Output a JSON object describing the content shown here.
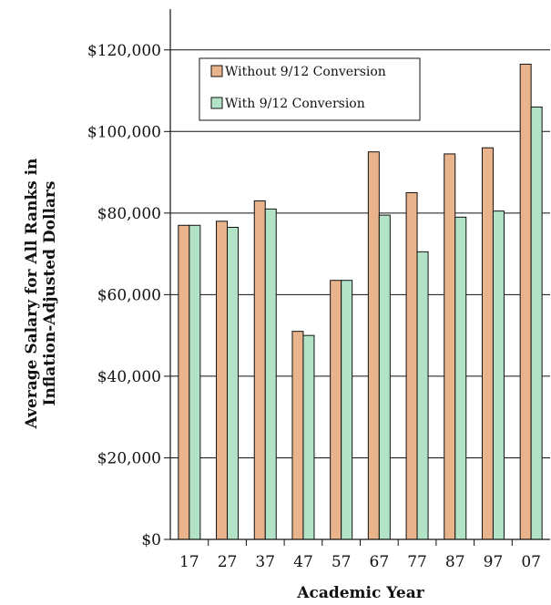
{
  "chart_data": {
    "type": "bar",
    "xlabel": "Academic Year",
    "ylabel_lines": [
      "Average Salary for All Ranks in",
      "Inflation-Adjusted Dollars"
    ],
    "categories": [
      "17",
      "27",
      "37",
      "47",
      "57",
      "67",
      "77",
      "87",
      "97",
      "07"
    ],
    "series": [
      {
        "name": "Without 9/12 Conversion",
        "color": "#e9b48c",
        "values": [
          77000,
          78000,
          83000,
          51000,
          63500,
          95000,
          85000,
          94500,
          96000,
          116500
        ]
      },
      {
        "name": "With 9/12 Conversion",
        "color": "#b2e3c7",
        "values": [
          77000,
          76500,
          81000,
          50000,
          63500,
          79500,
          70500,
          79000,
          80500,
          106000
        ]
      }
    ],
    "ylim": [
      0,
      130000
    ],
    "yticks": [
      0,
      20000,
      40000,
      60000,
      80000,
      100000,
      120000
    ],
    "ytick_labels": [
      "$0",
      "$20,000",
      "$40,000",
      "$60,000",
      "$80,000",
      "$100,000",
      "$120,000"
    ],
    "grid": true,
    "legend_position": "top-left"
  }
}
